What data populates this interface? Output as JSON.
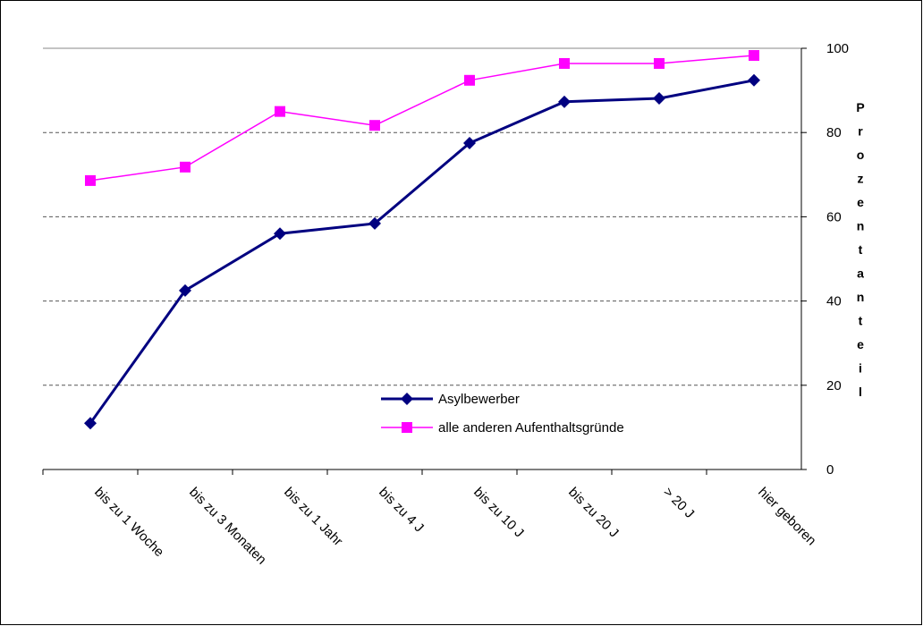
{
  "chart_data": {
    "type": "line",
    "categories": [
      "bis zu 1 Woche",
      "bis zu 3 Monaten",
      "bis zu 1 Jahr",
      "bis zu 4 J",
      "bis zu 10 J",
      "bis zu 20 J",
      "> 20 J",
      "hier geboren"
    ],
    "series": [
      {
        "name": "Asylbewerber",
        "color": "#000080",
        "marker": "diamond",
        "values": [
          11,
          42.5,
          56,
          58.4,
          77.5,
          87.3,
          88.1,
          92.4
        ]
      },
      {
        "name": "alle anderen Aufenthaltsgründe",
        "color": "#ff00ff",
        "marker": "square",
        "values": [
          68.6,
          71.8,
          85,
          81.7,
          92.4,
          96.4,
          96.4,
          98.3
        ]
      }
    ],
    "y_axis_label": "Prozentanteil",
    "y_axis_side": "right",
    "ylim": [
      0,
      100
    ],
    "yticks": [
      0,
      20,
      40,
      60,
      80,
      100
    ],
    "grid": true
  }
}
